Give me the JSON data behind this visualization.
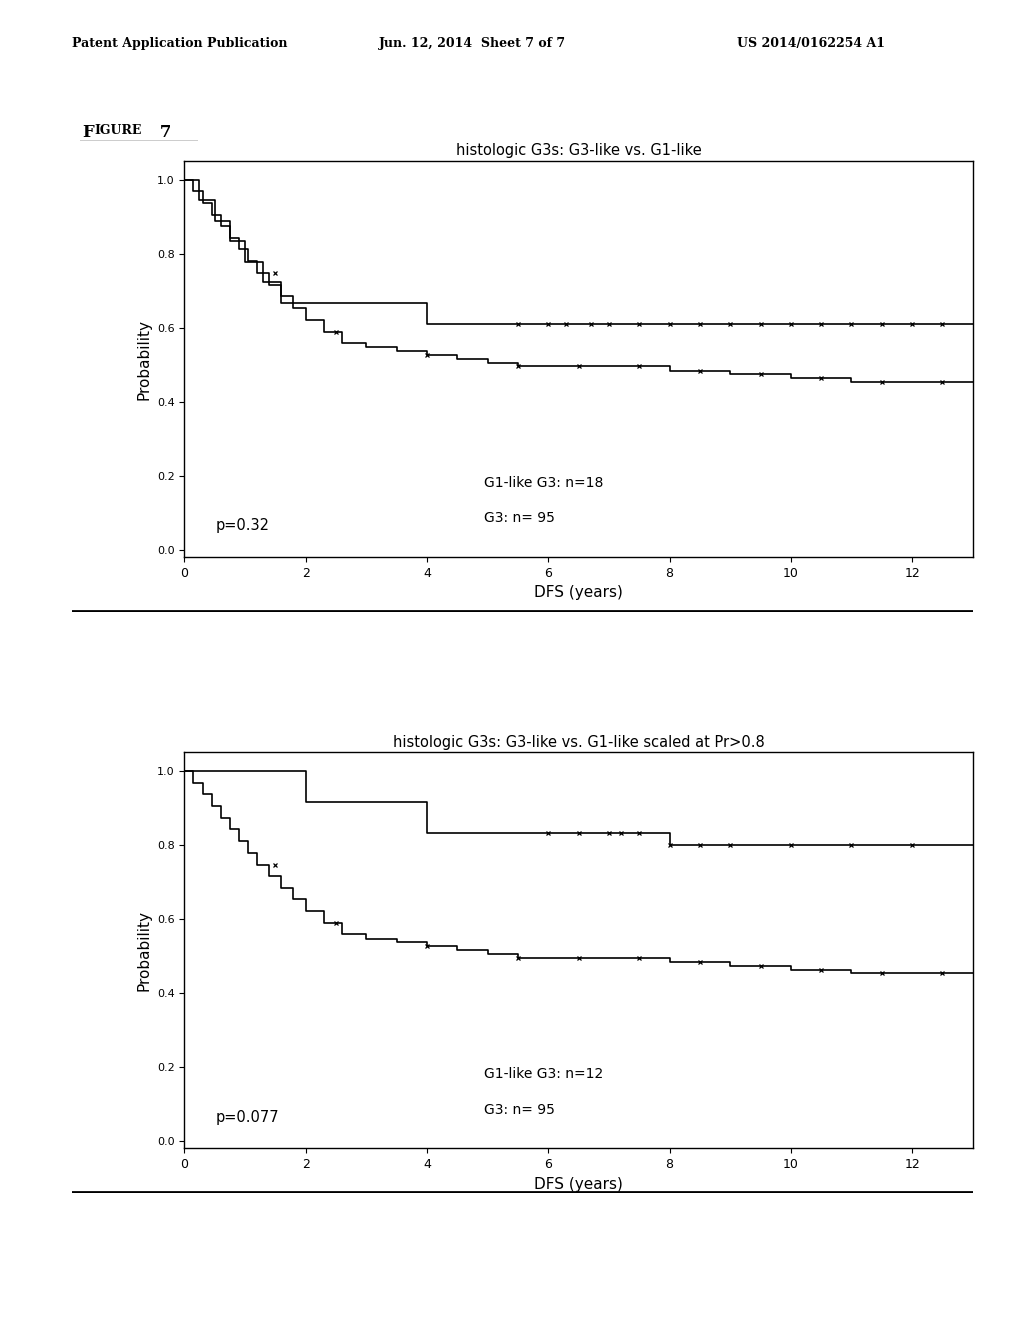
{
  "header_left": "Patent Application Publication",
  "header_center": "Jun. 12, 2014  Sheet 7 of 7",
  "header_right": "US 2014/0162254 A1",
  "figure_label": "Figure 7",
  "bg_color": "#ffffff",
  "line_color": "#000000",
  "plot1": {
    "title": "histologic G3s: G3-like vs. G1-like",
    "xlabel": "DFS (years)",
    "ylabel": "Probability",
    "xlim": [
      0,
      13
    ],
    "ylim": [
      -0.02,
      1.05
    ],
    "xticks": [
      0,
      2,
      4,
      6,
      8,
      10,
      12
    ],
    "yticks": [
      0.0,
      0.2,
      0.4,
      0.6,
      0.8,
      1.0
    ],
    "pvalue": "p=0.32",
    "legend_line1": "G1-like G3: n=18",
    "legend_line2": "G3: n= 95",
    "curve1_x": [
      0,
      0.25,
      0.5,
      0.75,
      1.0,
      1.3,
      1.6,
      2.0,
      2.5,
      3.0,
      4.0,
      4.5,
      5.5,
      13.0
    ],
    "curve1_y": [
      1.0,
      0.944,
      0.889,
      0.833,
      0.778,
      0.722,
      0.667,
      0.667,
      0.667,
      0.667,
      0.611,
      0.611,
      0.611,
      0.611
    ],
    "curve1_censor_x": [
      5.5,
      6.0,
      6.3,
      6.7,
      7.0,
      7.5,
      8.0,
      8.5,
      9.0,
      9.5,
      10.0,
      10.5,
      11.0,
      11.5,
      12.0,
      12.5
    ],
    "curve1_censor_y": [
      0.611,
      0.611,
      0.611,
      0.611,
      0.611,
      0.611,
      0.611,
      0.611,
      0.611,
      0.611,
      0.611,
      0.611,
      0.611,
      0.611,
      0.611,
      0.611
    ],
    "curve2_x": [
      0,
      0.15,
      0.3,
      0.45,
      0.6,
      0.75,
      0.9,
      1.05,
      1.2,
      1.4,
      1.6,
      1.8,
      2.0,
      2.3,
      2.6,
      3.0,
      3.5,
      4.0,
      4.5,
      5.0,
      5.5,
      6.0,
      6.5,
      7.0,
      7.5,
      8.0,
      8.5,
      9.0,
      10.0,
      11.0,
      12.0,
      13.0
    ],
    "curve2_y": [
      1.0,
      0.968,
      0.937,
      0.905,
      0.874,
      0.842,
      0.811,
      0.779,
      0.747,
      0.716,
      0.684,
      0.653,
      0.621,
      0.589,
      0.558,
      0.547,
      0.537,
      0.526,
      0.516,
      0.505,
      0.495,
      0.495,
      0.495,
      0.495,
      0.495,
      0.484,
      0.484,
      0.474,
      0.463,
      0.453,
      0.453,
      0.453
    ],
    "curve2_censor_x": [
      1.5,
      2.5,
      4.0,
      5.5,
      6.5,
      7.5,
      8.5,
      9.5,
      10.5,
      11.5,
      12.5
    ],
    "curve2_censor_y": [
      0.747,
      0.589,
      0.526,
      0.495,
      0.495,
      0.495,
      0.484,
      0.474,
      0.463,
      0.453,
      0.453
    ]
  },
  "plot2": {
    "title": "histologic G3s: G3-like vs. G1-like scaled at Pr>0.8",
    "xlabel": "DFS (years)",
    "ylabel": "Probability",
    "xlim": [
      0,
      13
    ],
    "ylim": [
      -0.02,
      1.05
    ],
    "xticks": [
      0,
      2,
      4,
      6,
      8,
      10,
      12
    ],
    "yticks": [
      0.0,
      0.2,
      0.4,
      0.6,
      0.8,
      1.0
    ],
    "pvalue": "p=0.077",
    "legend_line1": "G1-like G3: n=12",
    "legend_line2": "G3: n= 95",
    "curve1_x": [
      0,
      1.5,
      2.0,
      3.5,
      4.0,
      7.5,
      8.0,
      13.0
    ],
    "curve1_y": [
      1.0,
      1.0,
      0.917,
      0.917,
      0.833,
      0.833,
      0.8,
      0.8
    ],
    "curve1_censor_x": [
      6.0,
      6.5,
      7.0,
      7.2,
      7.5,
      8.0,
      8.5,
      9.0,
      10.0,
      11.0,
      12.0
    ],
    "curve1_censor_y": [
      0.833,
      0.833,
      0.833,
      0.833,
      0.833,
      0.8,
      0.8,
      0.8,
      0.8,
      0.8,
      0.8
    ],
    "curve2_x": [
      0,
      0.15,
      0.3,
      0.45,
      0.6,
      0.75,
      0.9,
      1.05,
      1.2,
      1.4,
      1.6,
      1.8,
      2.0,
      2.3,
      2.6,
      3.0,
      3.5,
      4.0,
      4.5,
      5.0,
      5.5,
      6.0,
      6.5,
      7.0,
      7.5,
      8.0,
      8.5,
      9.0,
      10.0,
      11.0,
      12.0,
      13.0
    ],
    "curve2_y": [
      1.0,
      0.968,
      0.937,
      0.905,
      0.874,
      0.842,
      0.811,
      0.779,
      0.747,
      0.716,
      0.684,
      0.653,
      0.621,
      0.589,
      0.558,
      0.547,
      0.537,
      0.526,
      0.516,
      0.505,
      0.495,
      0.495,
      0.495,
      0.495,
      0.495,
      0.484,
      0.484,
      0.474,
      0.463,
      0.453,
      0.453,
      0.453
    ],
    "curve2_censor_x": [
      1.5,
      2.5,
      4.0,
      5.5,
      6.5,
      7.5,
      8.5,
      9.5,
      10.5,
      11.5,
      12.5
    ],
    "curve2_censor_y": [
      0.747,
      0.589,
      0.526,
      0.495,
      0.495,
      0.495,
      0.484,
      0.474,
      0.463,
      0.453,
      0.453
    ]
  }
}
